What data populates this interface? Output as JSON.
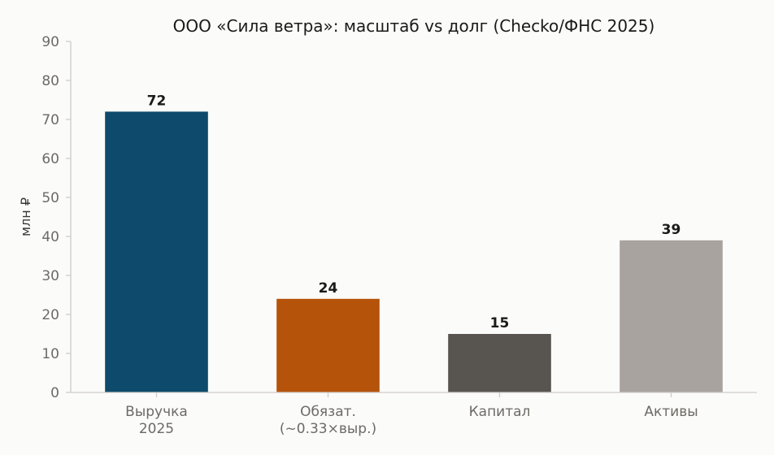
{
  "chart_data": {
    "type": "bar",
    "title": "ООО «Сила ветра»: масштаб vs долг (Checko/ФНС 2025)",
    "xlabel": "",
    "ylabel": "млн ₽",
    "ylim": [
      0,
      90
    ],
    "yticks": [
      0,
      10,
      20,
      30,
      40,
      50,
      60,
      70,
      80,
      90
    ],
    "grid": false,
    "categories": [
      [
        "Выручка",
        "2025"
      ],
      [
        "Обязат.",
        "(~0.33×выр.)"
      ],
      [
        "Капитал"
      ],
      [
        "Активы"
      ]
    ],
    "values": [
      72,
      24,
      15,
      39
    ],
    "data_labels": [
      "72",
      "24",
      "15",
      "39"
    ],
    "colors": [
      "#0e4a6b",
      "#b5530a",
      "#58544f",
      "#a8a39e"
    ]
  }
}
